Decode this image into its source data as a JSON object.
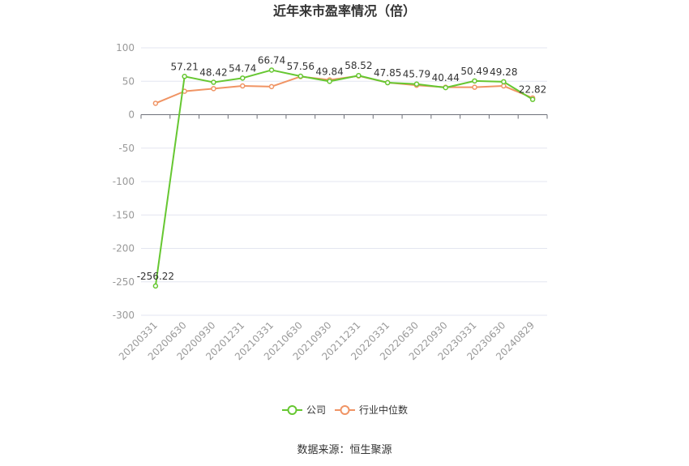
{
  "chart_data": {
    "type": "line",
    "title": "近年来市盈率情况（倍）",
    "categories": [
      "20200331",
      "20200630",
      "20200930",
      "20201231",
      "20210331",
      "20210630",
      "20210930",
      "20211231",
      "20220331",
      "20220630",
      "20220930",
      "20230331",
      "20230630",
      "20240829"
    ],
    "series": [
      {
        "name": "公司",
        "color": "#66c731",
        "values": [
          -256.22,
          57.21,
          48.42,
          54.74,
          66.74,
          57.56,
          49.84,
          58.52,
          47.85,
          45.79,
          40.44,
          50.49,
          49.28,
          22.82
        ]
      },
      {
        "name": "行业中位数",
        "color": "#f09464",
        "values": [
          17,
          35,
          39,
          43,
          42,
          57,
          52,
          58,
          48,
          44,
          41,
          41,
          43,
          25
        ]
      }
    ],
    "ylim": [
      -300,
      100
    ],
    "yticks": [
      100,
      50,
      0,
      -50,
      -100,
      -150,
      -200,
      -250,
      -300
    ],
    "grid": true,
    "legend_position": "bottom-center",
    "source": "数据来源：恒生聚源"
  }
}
